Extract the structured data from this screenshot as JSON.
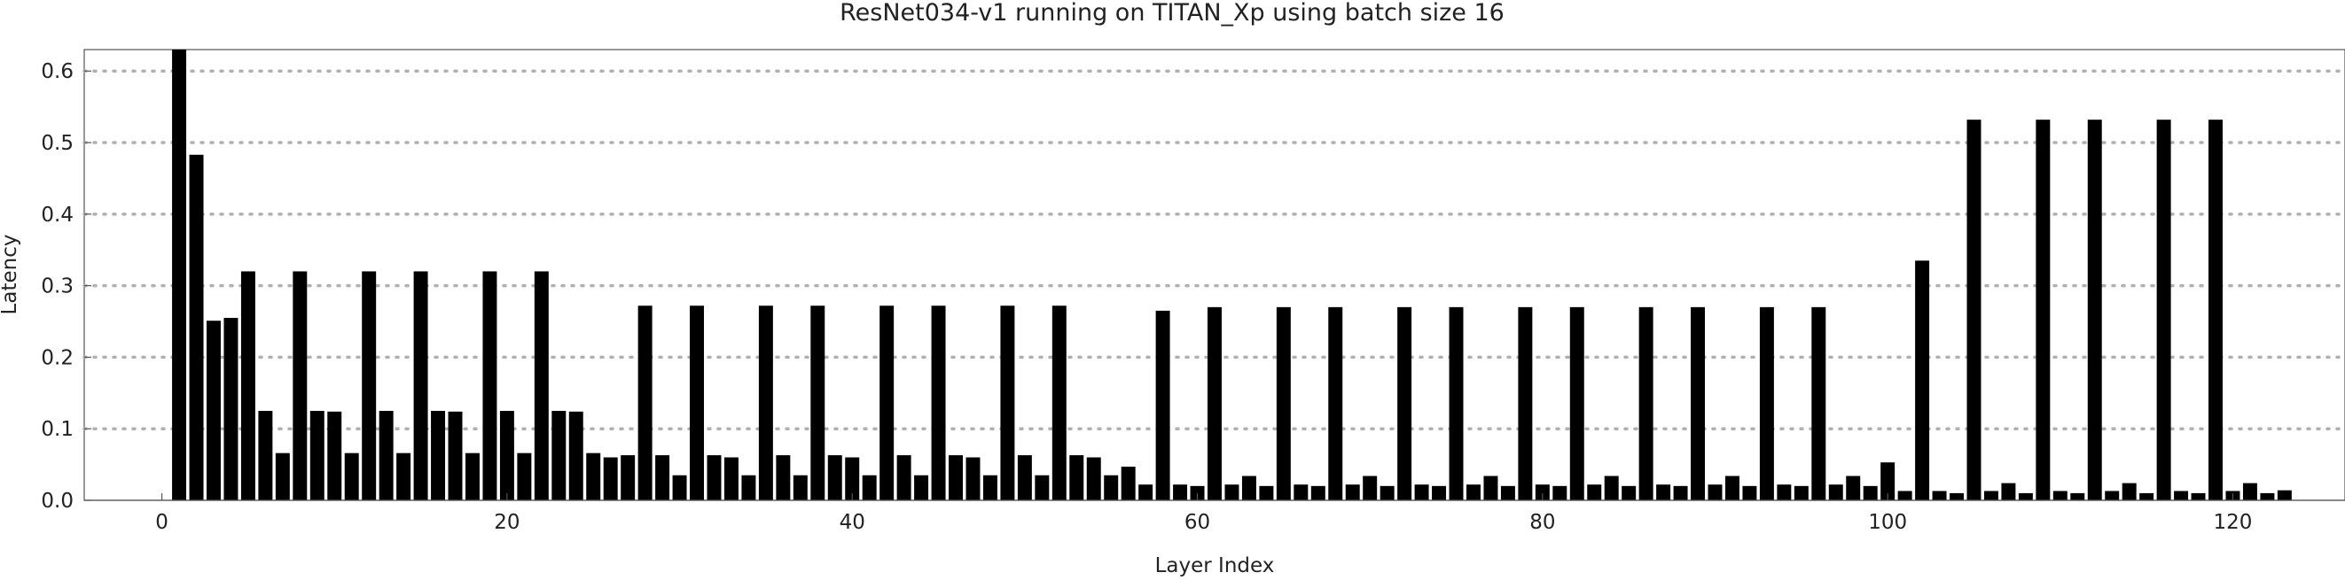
{
  "chart_data": {
    "type": "bar",
    "title": "ResNet034-v1 running on TITAN_Xp using batch size 16",
    "xlabel": "Layer Index",
    "ylabel": "Latency",
    "xlim": [
      -4.5,
      126.5
    ],
    "ylim": [
      0,
      0.63
    ],
    "xticks": [
      0,
      20,
      40,
      60,
      80,
      100,
      120
    ],
    "yticks": [
      0.0,
      0.1,
      0.2,
      0.3,
      0.4,
      0.5,
      0.6
    ],
    "xtick_labels": [
      "0",
      "20",
      "40",
      "60",
      "80",
      "100",
      "120"
    ],
    "ytick_labels": [
      "0.0",
      "0.1",
      "0.2",
      "0.3",
      "0.4",
      "0.5",
      "0.6"
    ],
    "grid": "horizontal dotted",
    "bar_color": "#000000",
    "x": [
      1,
      2,
      3,
      4,
      5,
      6,
      7,
      8,
      9,
      10,
      11,
      12,
      13,
      14,
      15,
      16,
      17,
      18,
      19,
      20,
      21,
      22,
      23,
      24,
      25,
      26,
      27,
      28,
      29,
      30,
      31,
      32,
      33,
      34,
      35,
      36,
      37,
      38,
      39,
      40,
      41,
      42,
      43,
      44,
      45,
      46,
      47,
      48,
      49,
      50,
      51,
      52,
      53,
      54,
      55,
      56,
      57,
      58,
      59,
      60,
      61,
      62,
      63,
      64,
      65,
      66,
      67,
      68,
      69,
      70,
      71,
      72,
      73,
      74,
      75,
      76,
      77,
      78,
      79,
      80,
      81,
      82,
      83,
      84,
      85,
      86,
      87,
      88,
      89,
      90,
      91,
      92,
      93,
      94,
      95,
      96,
      97,
      98,
      99,
      100,
      101,
      102,
      103,
      104,
      105,
      106,
      107,
      108,
      109,
      110,
      111,
      112,
      113,
      114,
      115,
      116,
      117,
      118,
      119,
      120,
      121,
      122,
      123,
      124
    ],
    "values": [
      0.63,
      0.483,
      0.251,
      0.255,
      0.32,
      0.125,
      0.066,
      0.32,
      0.125,
      0.124,
      0.066,
      0.32,
      0.125,
      0.066,
      0.32,
      0.125,
      0.124,
      0.066,
      0.32,
      0.125,
      0.066,
      0.32,
      0.125,
      0.124,
      0.066,
      0.06,
      0.063,
      0.272,
      0.063,
      0.035,
      0.272,
      0.063,
      0.06,
      0.035,
      0.272,
      0.063,
      0.035,
      0.272,
      0.063,
      0.06,
      0.035,
      0.272,
      0.063,
      0.035,
      0.272,
      0.063,
      0.06,
      0.035,
      0.272,
      0.063,
      0.035,
      0.272,
      0.063,
      0.06,
      0.035,
      0.047,
      0.022,
      0.265,
      0.022,
      0.02,
      0.27,
      0.022,
      0.034,
      0.02,
      0.27,
      0.022,
      0.02,
      0.27,
      0.022,
      0.034,
      0.02,
      0.27,
      0.022,
      0.02,
      0.27,
      0.022,
      0.034,
      0.02,
      0.27,
      0.022,
      0.02,
      0.27,
      0.022,
      0.034,
      0.02,
      0.27,
      0.022,
      0.02,
      0.27,
      0.022,
      0.034,
      0.02,
      0.27,
      0.022,
      0.02,
      0.27,
      0.022,
      0.034,
      0.02,
      0.053,
      0.013,
      0.335,
      0.013,
      0.01,
      0.532,
      0.013,
      0.024,
      0.01,
      0.532,
      0.013,
      0.01,
      0.532,
      0.013,
      0.024,
      0.01,
      0.532,
      0.013,
      0.01,
      0.532,
      0.013,
      0.024,
      0.01,
      0.014,
      0.0
    ]
  }
}
